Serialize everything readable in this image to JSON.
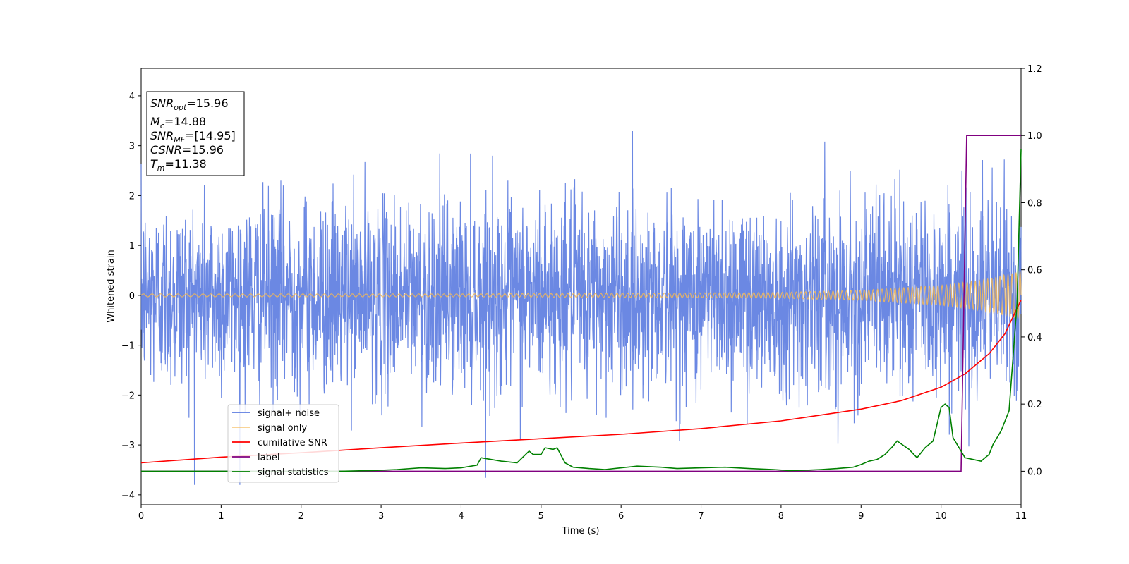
{
  "chart_data": {
    "type": "line",
    "title": "",
    "xlabel": "Time (s)",
    "ylabel": "Whitened strain",
    "xlim": [
      0,
      11
    ],
    "ylim": [
      -4.2,
      4.55
    ],
    "y2lim": [
      -0.1,
      1.2
    ],
    "x_ticks": [
      0,
      1,
      2,
      3,
      4,
      5,
      6,
      7,
      8,
      9,
      10,
      11
    ],
    "y_ticks": [
      -4,
      -3,
      -2,
      -1,
      0,
      1,
      2,
      3,
      4
    ],
    "y2_ticks": [
      0.0,
      0.2,
      0.4,
      0.6,
      0.8,
      1.0,
      1.2
    ],
    "x_tick_labels": [
      "0",
      "1",
      "2",
      "3",
      "4",
      "5",
      "6",
      "7",
      "8",
      "9",
      "10",
      "11"
    ],
    "y_tick_labels": [
      "−4",
      "−3",
      "−2",
      "−1",
      "0",
      "1",
      "2",
      "3",
      "4"
    ],
    "y2_tick_labels": [
      "0.0",
      "0.2",
      "0.4",
      "0.6",
      "0.8",
      "1.0",
      "1.2"
    ],
    "legend_position": "lower-left",
    "grid": false,
    "series": [
      {
        "name": "signal+ noise",
        "color": "#5b7be0",
        "axis": "left",
        "description_values": {
          "noise_std": 0.95,
          "max": 3.6,
          "min": -3.8
        }
      },
      {
        "name": "signal only",
        "color": "#f5b955",
        "axis": "left",
        "envelope": {
          "t": [
            0,
            2,
            4,
            6,
            8,
            9,
            10,
            10.5,
            11
          ],
          "amp": [
            0.03,
            0.03,
            0.03,
            0.04,
            0.06,
            0.1,
            0.2,
            0.3,
            0.48
          ]
        }
      },
      {
        "name": "cumilative SNR",
        "color": "#ff0000",
        "axis": "right",
        "x": [
          0,
          1,
          2,
          3,
          4,
          5,
          6,
          7,
          8,
          9,
          9.5,
          10,
          10.3,
          10.6,
          10.8,
          11
        ],
        "values": [
          0.025,
          0.042,
          0.055,
          0.07,
          0.084,
          0.097,
          0.11,
          0.127,
          0.15,
          0.185,
          0.21,
          0.25,
          0.29,
          0.35,
          0.41,
          0.51
        ]
      },
      {
        "name": "label",
        "color": "#800080",
        "axis": "right",
        "x": [
          0,
          10.25,
          10.32,
          11
        ],
        "values": [
          0,
          0,
          1,
          1
        ]
      },
      {
        "name": "signal statistics",
        "color": "#008000",
        "axis": "right",
        "x": [
          0,
          0.5,
          1,
          1.5,
          2,
          2.5,
          2.9,
          3.2,
          3.5,
          3.8,
          4.0,
          4.2,
          4.25,
          4.5,
          4.7,
          4.85,
          4.9,
          5.0,
          5.05,
          5.15,
          5.2,
          5.3,
          5.4,
          5.6,
          5.8,
          6.0,
          6.2,
          6.5,
          6.7,
          7.0,
          7.3,
          7.6,
          7.9,
          8.1,
          8.3,
          8.5,
          8.7,
          8.9,
          9.0,
          9.1,
          9.2,
          9.3,
          9.4,
          9.45,
          9.6,
          9.7,
          9.8,
          9.9,
          10.0,
          10.05,
          10.1,
          10.15,
          10.25,
          10.3,
          10.4,
          10.5,
          10.6,
          10.65,
          10.75,
          10.85,
          10.95,
          11.0
        ],
        "values": [
          0,
          0,
          0,
          0,
          0,
          0,
          0.002,
          0.005,
          0.01,
          0.008,
          0.01,
          0.018,
          0.04,
          0.03,
          0.025,
          0.06,
          0.05,
          0.05,
          0.07,
          0.065,
          0.07,
          0.025,
          0.012,
          0.008,
          0.005,
          0.01,
          0.015,
          0.012,
          0.008,
          0.01,
          0.012,
          0.008,
          0.005,
          0.002,
          0.003,
          0.005,
          0.008,
          0.012,
          0.02,
          0.03,
          0.035,
          0.05,
          0.075,
          0.09,
          0.065,
          0.04,
          0.07,
          0.09,
          0.19,
          0.2,
          0.19,
          0.1,
          0.06,
          0.04,
          0.035,
          0.03,
          0.05,
          0.08,
          0.12,
          0.18,
          0.5,
          0.96
        ]
      }
    ],
    "annotation_box": {
      "lines": [
        {
          "base": "SNR",
          "sub": "opt",
          "value": "=15.96"
        },
        {
          "base": "M",
          "sub": "c",
          "value": "=14.88"
        },
        {
          "base": "SNR",
          "sub": "MF",
          "value": "=[14.95]"
        },
        {
          "base": "CSNR",
          "sub": "",
          "value": "=15.96"
        },
        {
          "base": "T",
          "sub": "m",
          "value": "=11.38"
        }
      ]
    }
  }
}
